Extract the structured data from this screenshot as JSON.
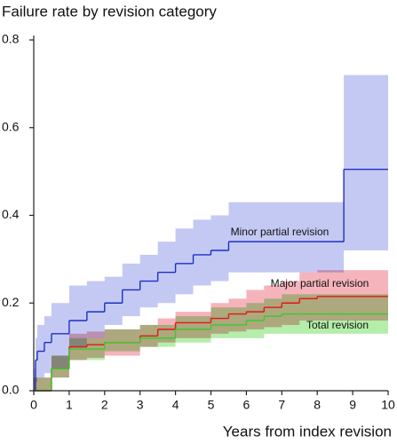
{
  "chart_data": {
    "type": "step",
    "title": "Failure rate by revision category",
    "x_label": "Years from index revision",
    "xlim": [
      0,
      10
    ],
    "ylim": [
      0,
      0.8
    ],
    "xticks": [
      0,
      1,
      2,
      3,
      4,
      5,
      6,
      7,
      8,
      9,
      10
    ],
    "yticks": [
      {
        "value": 0,
        "label": "0.0"
      },
      0.2,
      0.4,
      0.6,
      0.8
    ],
    "series": [
      {
        "name": "Minor partial revision",
        "color": "#1f2fc8",
        "band_color": "#c3c9f3",
        "x": [
          0,
          0.05,
          0.1,
          0.3,
          0.5,
          1,
          1.5,
          2,
          2.5,
          3,
          3.5,
          4,
          4.5,
          5,
          5.5,
          8.75,
          10
        ],
        "values": [
          0,
          0.07,
          0.09,
          0.11,
          0.13,
          0.16,
          0.18,
          0.2,
          0.23,
          0.25,
          0.27,
          0.29,
          0.31,
          0.32,
          0.34,
          0.505,
          0.505
        ],
        "lower": [
          0,
          0.02,
          0.03,
          0.04,
          0.05,
          0.1,
          0.12,
          0.15,
          0.17,
          0.19,
          0.2,
          0.22,
          0.24,
          0.25,
          0.27,
          0.32,
          0.32
        ],
        "upper": [
          0.05,
          0.12,
          0.15,
          0.17,
          0.2,
          0.24,
          0.25,
          0.26,
          0.29,
          0.31,
          0.34,
          0.37,
          0.39,
          0.4,
          0.43,
          0.72,
          0.72
        ]
      },
      {
        "name": "Major partial revision",
        "color": "#e01818",
        "band_color": "#f5b4bc",
        "x": [
          0,
          0.5,
          1,
          1.5,
          2,
          3,
          3.5,
          4,
          5,
          5.5,
          6,
          6.5,
          7,
          7.5,
          8,
          10
        ],
        "values": [
          0,
          0.05,
          0.1,
          0.105,
          0.11,
          0.125,
          0.14,
          0.155,
          0.165,
          0.175,
          0.18,
          0.19,
          0.2,
          0.21,
          0.215,
          0.215
        ],
        "lower": [
          0,
          0.03,
          0.07,
          0.075,
          0.08,
          0.1,
          0.11,
          0.12,
          0.13,
          0.135,
          0.14,
          0.145,
          0.15,
          0.16,
          0.16,
          0.16
        ],
        "upper": [
          0.03,
          0.08,
          0.13,
          0.135,
          0.14,
          0.15,
          0.165,
          0.18,
          0.2,
          0.21,
          0.23,
          0.24,
          0.25,
          0.27,
          0.275,
          0.275
        ]
      },
      {
        "name": "Total revision",
        "color": "#3cc92c",
        "band_color": "#b4eeaa",
        "x": [
          0,
          0.5,
          1,
          2,
          3,
          4,
          5,
          6,
          6.5,
          7,
          10
        ],
        "values": [
          0,
          0.05,
          0.095,
          0.11,
          0.12,
          0.14,
          0.15,
          0.16,
          0.17,
          0.175,
          0.175
        ],
        "lower": [
          0,
          0.03,
          0.07,
          0.09,
          0.1,
          0.11,
          0.12,
          0.12,
          0.13,
          0.13,
          0.13
        ],
        "upper": [
          0.03,
          0.08,
          0.12,
          0.14,
          0.15,
          0.17,
          0.19,
          0.2,
          0.21,
          0.22,
          0.22
        ]
      }
    ],
    "label_positions": null
  }
}
